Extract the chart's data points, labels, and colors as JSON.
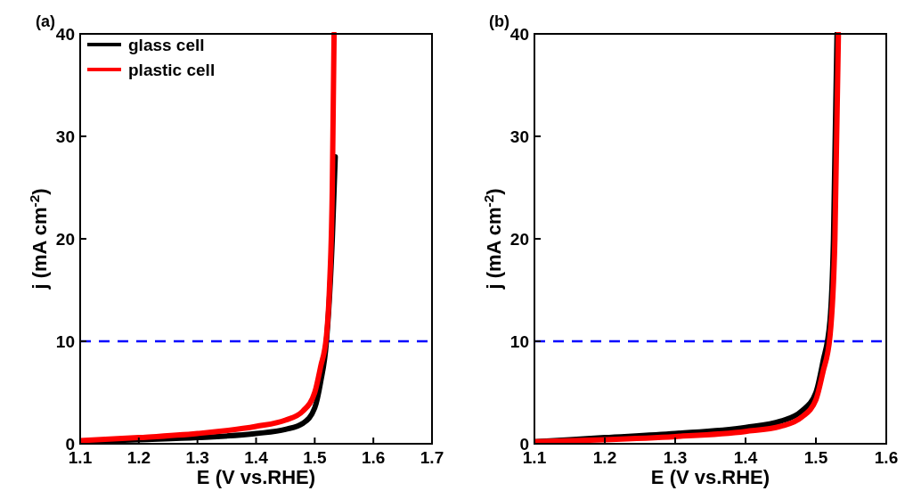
{
  "chart_data": [
    {
      "type": "line",
      "title": "(a)",
      "xlabel": "E (V vs.RHE)",
      "ylabel": "j (mA cm$^{-2}$)",
      "xlim": [
        1.1,
        1.7
      ],
      "xticks": [
        1.1,
        1.2,
        1.3,
        1.4,
        1.5,
        1.6,
        1.7
      ],
      "ylim": [
        0,
        40
      ],
      "yticks": [
        0,
        10,
        20,
        30,
        40
      ],
      "legend": "top left",
      "grid": false,
      "series": [
        {
          "name": "glass cell",
          "color": "#000000",
          "x": [
            1.1,
            1.2,
            1.3,
            1.4,
            1.45,
            1.48,
            1.5,
            1.51,
            1.52,
            1.53,
            1.535
          ],
          "values": [
            0.2,
            0.4,
            0.6,
            1.0,
            1.4,
            2.0,
            3.5,
            6,
            10,
            20,
            28
          ]
        },
        {
          "name": "plastic cell",
          "color": "#ff0000",
          "x": [
            1.1,
            1.2,
            1.3,
            1.4,
            1.45,
            1.48,
            1.5,
            1.51,
            1.52,
            1.525,
            1.53,
            1.533
          ],
          "values": [
            0.3,
            0.6,
            1.0,
            1.7,
            2.3,
            3.2,
            5.0,
            7.5,
            10.5,
            15,
            25,
            40
          ]
        }
      ],
      "ref_lines": [
        {
          "axis": "y",
          "value": 10,
          "color": "#0000ff",
          "line_style": "dashed"
        }
      ]
    },
    {
      "type": "line",
      "title": "(b)",
      "xlabel": "E (V vs.RHE)",
      "ylabel": "j (mA cm$^{-2}$)",
      "xlim": [
        1.1,
        1.6
      ],
      "xticks": [
        1.1,
        1.2,
        1.3,
        1.4,
        1.5,
        1.6
      ],
      "ylim": [
        0,
        40
      ],
      "yticks": [
        0,
        10,
        20,
        30,
        40
      ],
      "grid": false,
      "series": [
        {
          "color": "#000000",
          "x": [
            1.1,
            1.2,
            1.3,
            1.4,
            1.45,
            1.48,
            1.5,
            1.51,
            1.52,
            1.525,
            1.53
          ],
          "values": [
            0.2,
            0.6,
            1.0,
            1.6,
            2.2,
            3.2,
            5,
            8,
            12,
            20,
            40
          ]
        },
        {
          "color": "#ff0000",
          "x": [
            1.1,
            1.2,
            1.3,
            1.4,
            1.45,
            1.48,
            1.5,
            1.51,
            1.52,
            1.527,
            1.532
          ],
          "values": [
            0.2,
            0.4,
            0.7,
            1.2,
            1.7,
            2.6,
            4.3,
            7,
            10.5,
            20,
            40
          ]
        }
      ],
      "ref_lines": [
        {
          "axis": "y",
          "value": 10,
          "color": "#0000ff",
          "line_style": "dashed"
        }
      ]
    }
  ]
}
